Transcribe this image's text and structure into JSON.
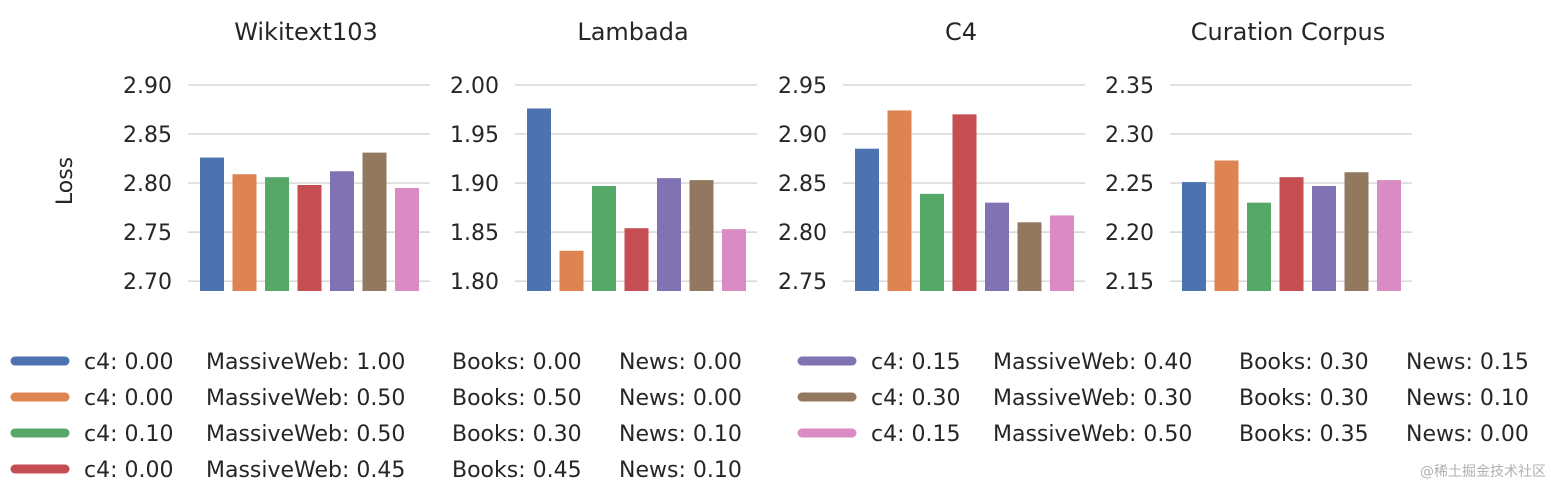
{
  "chart_data": {
    "type": "bar",
    "ylabel": "Loss",
    "grid": true,
    "series_colors": [
      "#4c72b0",
      "#dd8452",
      "#55a868",
      "#c44e52",
      "#8172b3",
      "#937860",
      "#da8bc3"
    ],
    "legend": [
      [
        "c4: 0.00",
        "MassiveWeb: 1.00",
        "Books: 0.00",
        "News: 0.00"
      ],
      [
        "c4: 0.00",
        "MassiveWeb: 0.50",
        "Books: 0.50",
        "News: 0.00"
      ],
      [
        "c4: 0.10",
        "MassiveWeb: 0.50",
        "Books: 0.30",
        "News: 0.10"
      ],
      [
        "c4: 0.00",
        "MassiveWeb: 0.45",
        "Books: 0.45",
        "News: 0.10"
      ],
      [
        "c4: 0.15",
        "MassiveWeb: 0.40",
        "Books: 0.30",
        "News: 0.15"
      ],
      [
        "c4: 0.30",
        "MassiveWeb: 0.30",
        "Books: 0.30",
        "News: 0.10"
      ],
      [
        "c4: 0.15",
        "MassiveWeb: 0.50",
        "Books: 0.35",
        "News: 0.00"
      ]
    ],
    "panels": [
      {
        "title": "Wikitext103",
        "yticks": [
          "2.70",
          "2.75",
          "2.80",
          "2.85",
          "2.90"
        ],
        "ylim": [
          2.69,
          2.905
        ],
        "values": [
          2.826,
          2.809,
          2.806,
          2.798,
          2.812,
          2.831,
          2.795
        ]
      },
      {
        "title": "Lambada",
        "yticks": [
          "1.80",
          "1.85",
          "1.90",
          "1.95",
          "2.00"
        ],
        "ylim": [
          1.79,
          2.005
        ],
        "values": [
          1.976,
          1.831,
          1.897,
          1.854,
          1.905,
          1.903,
          1.853
        ]
      },
      {
        "title": "C4",
        "yticks": [
          "2.75",
          "2.80",
          "2.85",
          "2.90",
          "2.95"
        ],
        "ylim": [
          2.74,
          2.955
        ],
        "values": [
          2.885,
          2.924,
          2.839,
          2.92,
          2.83,
          2.81,
          2.817
        ]
      },
      {
        "title": "Curation Corpus",
        "yticks": [
          "2.15",
          "2.20",
          "2.25",
          "2.30",
          "2.35"
        ],
        "ylim": [
          2.14,
          2.355
        ],
        "values": [
          2.251,
          2.273,
          2.23,
          2.256,
          2.247,
          2.261,
          2.253
        ]
      }
    ]
  },
  "watermark": "@稀土掘金技术社区"
}
